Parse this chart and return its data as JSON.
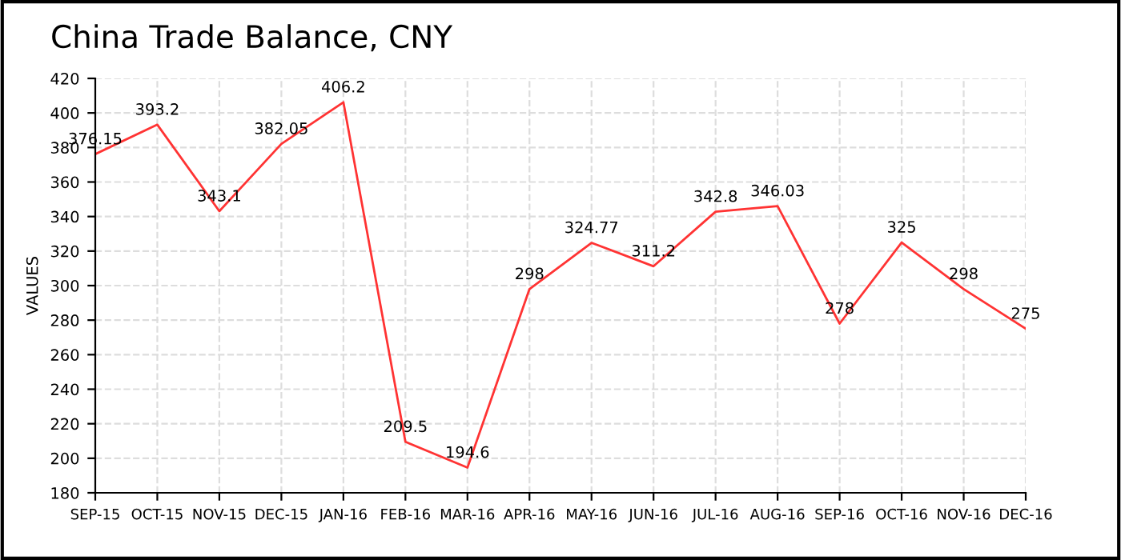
{
  "chart_data": {
    "type": "line",
    "title": "China Trade Balance, CNY",
    "ylabel": "VALUES",
    "categories": [
      "SEP-15",
      "OCT-15",
      "NOV-15",
      "DEC-15",
      "JAN-16",
      "FEB-16",
      "MAR-16",
      "APR-16",
      "MAY-16",
      "JUN-16",
      "JUL-16",
      "AUG-16",
      "SEP-16",
      "OCT-16",
      "NOV-16",
      "DEC-16"
    ],
    "series": [
      {
        "color": "#ff3333",
        "values": [
          376.15,
          393.2,
          343.1,
          382.05,
          406.2,
          209.5,
          194.6,
          298,
          324.77,
          311.2,
          342.8,
          346.03,
          278,
          325,
          298,
          275
        ]
      }
    ],
    "ylim": [
      180,
      420
    ],
    "yticks": [
      180,
      200,
      220,
      240,
      260,
      280,
      300,
      320,
      340,
      360,
      380,
      400,
      420
    ],
    "grid": true,
    "data_labels": true,
    "marker": "none",
    "line_style": "solid"
  }
}
